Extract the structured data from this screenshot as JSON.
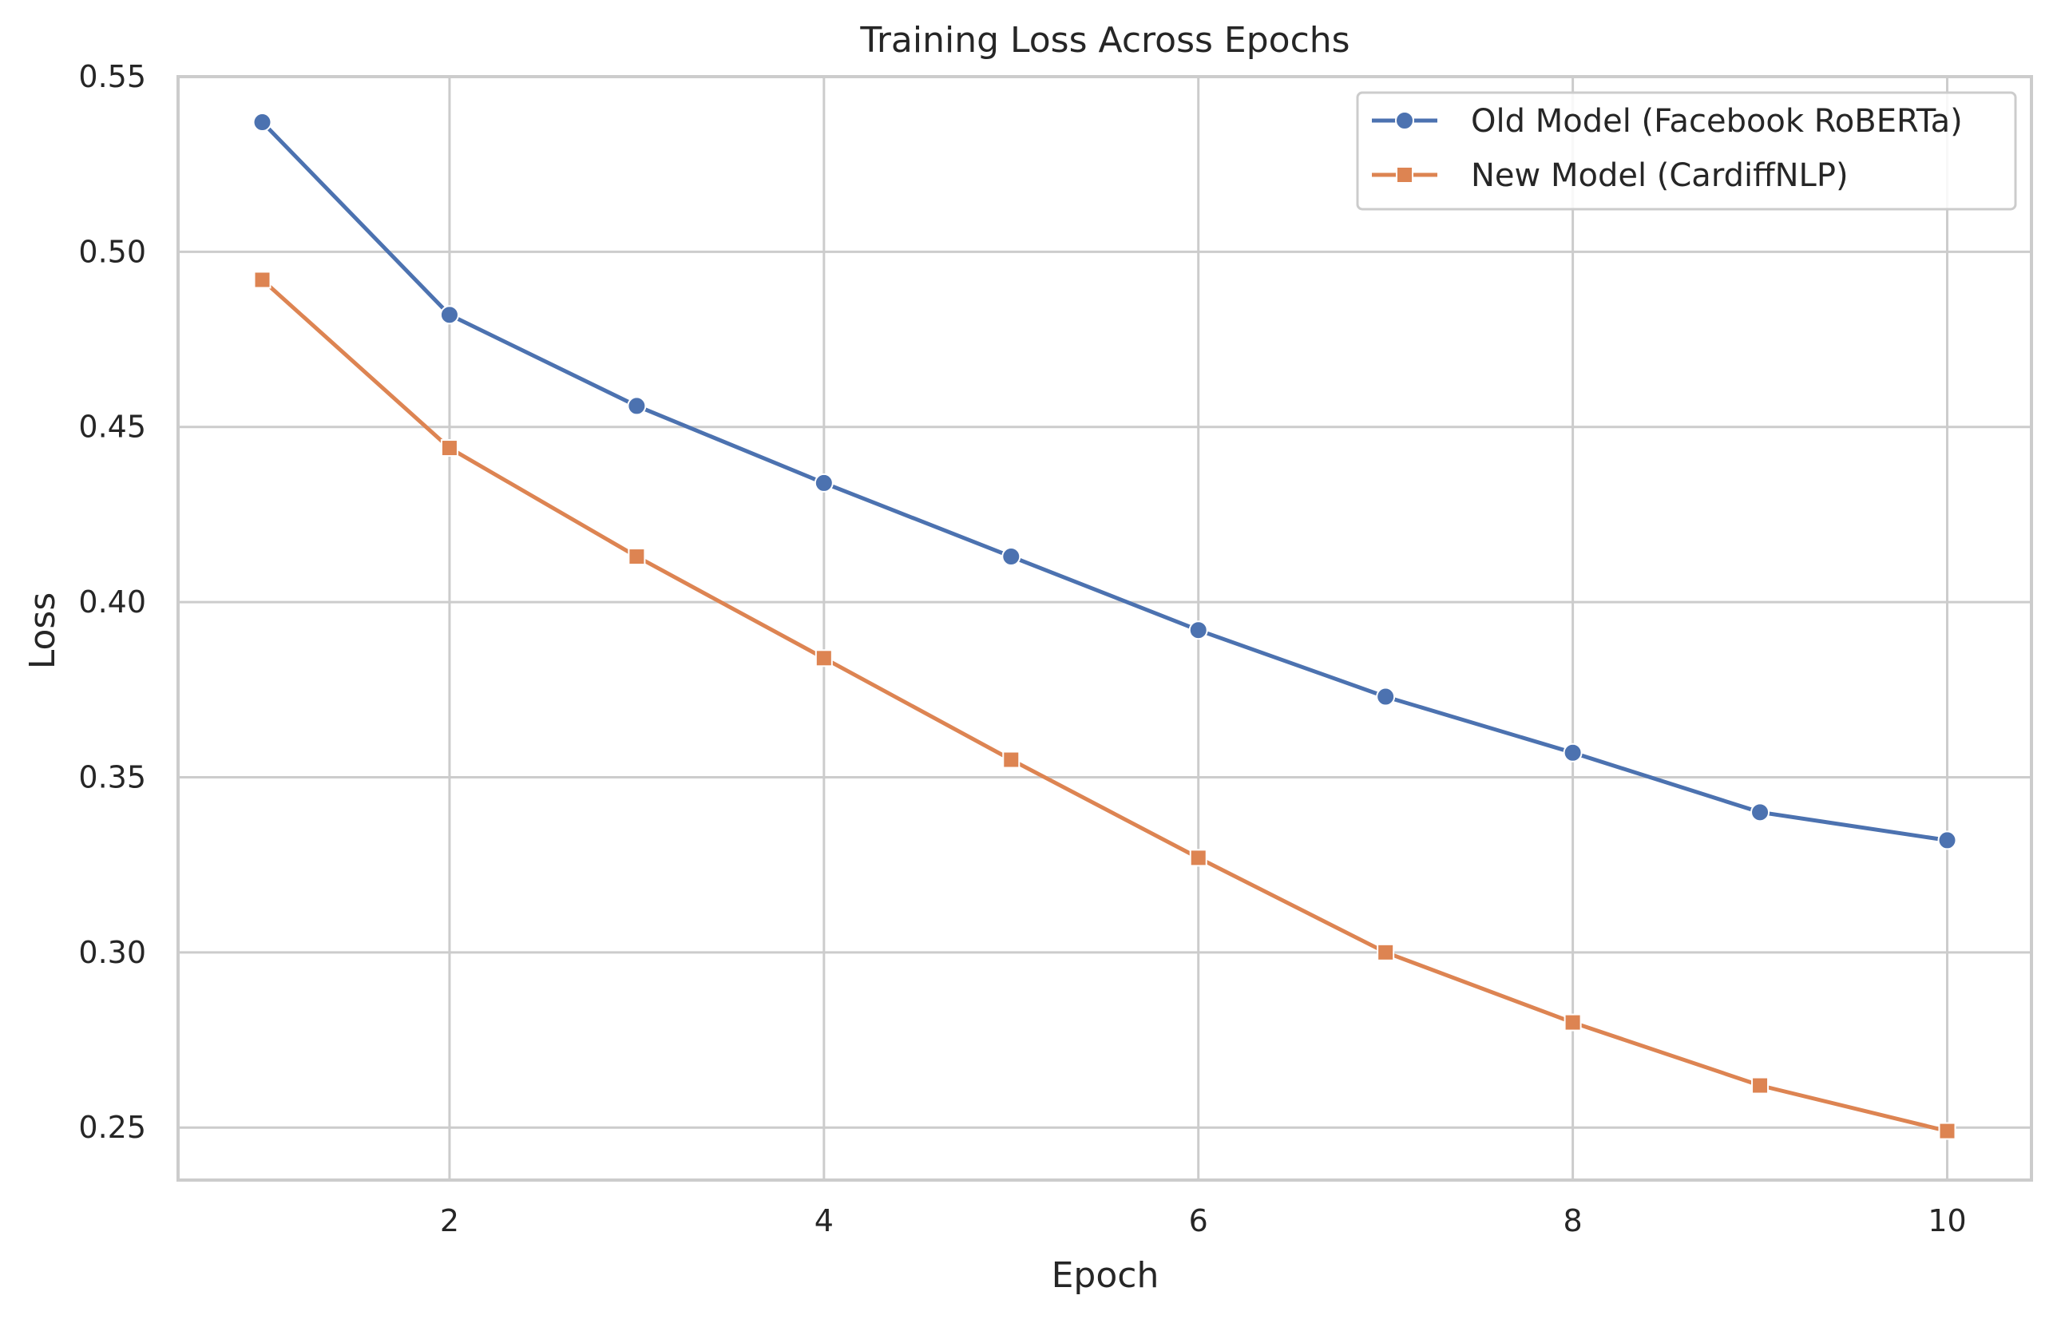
{
  "chart_data": {
    "type": "line",
    "title": "Training Loss Across Epochs",
    "xlabel": "Epoch",
    "ylabel": "Loss",
    "x": [
      1,
      2,
      3,
      4,
      5,
      6,
      7,
      8,
      9,
      10
    ],
    "xlim": [
      0.55,
      10.45
    ],
    "ylim": [
      0.235,
      0.55
    ],
    "xticks": [
      2,
      4,
      6,
      8,
      10
    ],
    "xtick_labels": [
      "2",
      "4",
      "6",
      "8",
      "10"
    ],
    "yticks": [
      0.25,
      0.3,
      0.35,
      0.4,
      0.45,
      0.5,
      0.55
    ],
    "ytick_labels": [
      "0.25",
      "0.30",
      "0.35",
      "0.40",
      "0.45",
      "0.50",
      "0.55"
    ],
    "grid": true,
    "legend_position": "top-right",
    "series": [
      {
        "name": "Old Model (Facebook RoBERTa)",
        "color": "#4c72b0",
        "marker": "circle",
        "values": [
          0.537,
          0.482,
          0.456,
          0.434,
          0.413,
          0.392,
          0.373,
          0.357,
          0.34,
          0.332
        ]
      },
      {
        "name": "New Model (CardiffNLP)",
        "color": "#dd8452",
        "marker": "square",
        "values": [
          0.492,
          0.444,
          0.413,
          0.384,
          0.355,
          0.327,
          0.3,
          0.28,
          0.262,
          0.249
        ]
      }
    ]
  }
}
